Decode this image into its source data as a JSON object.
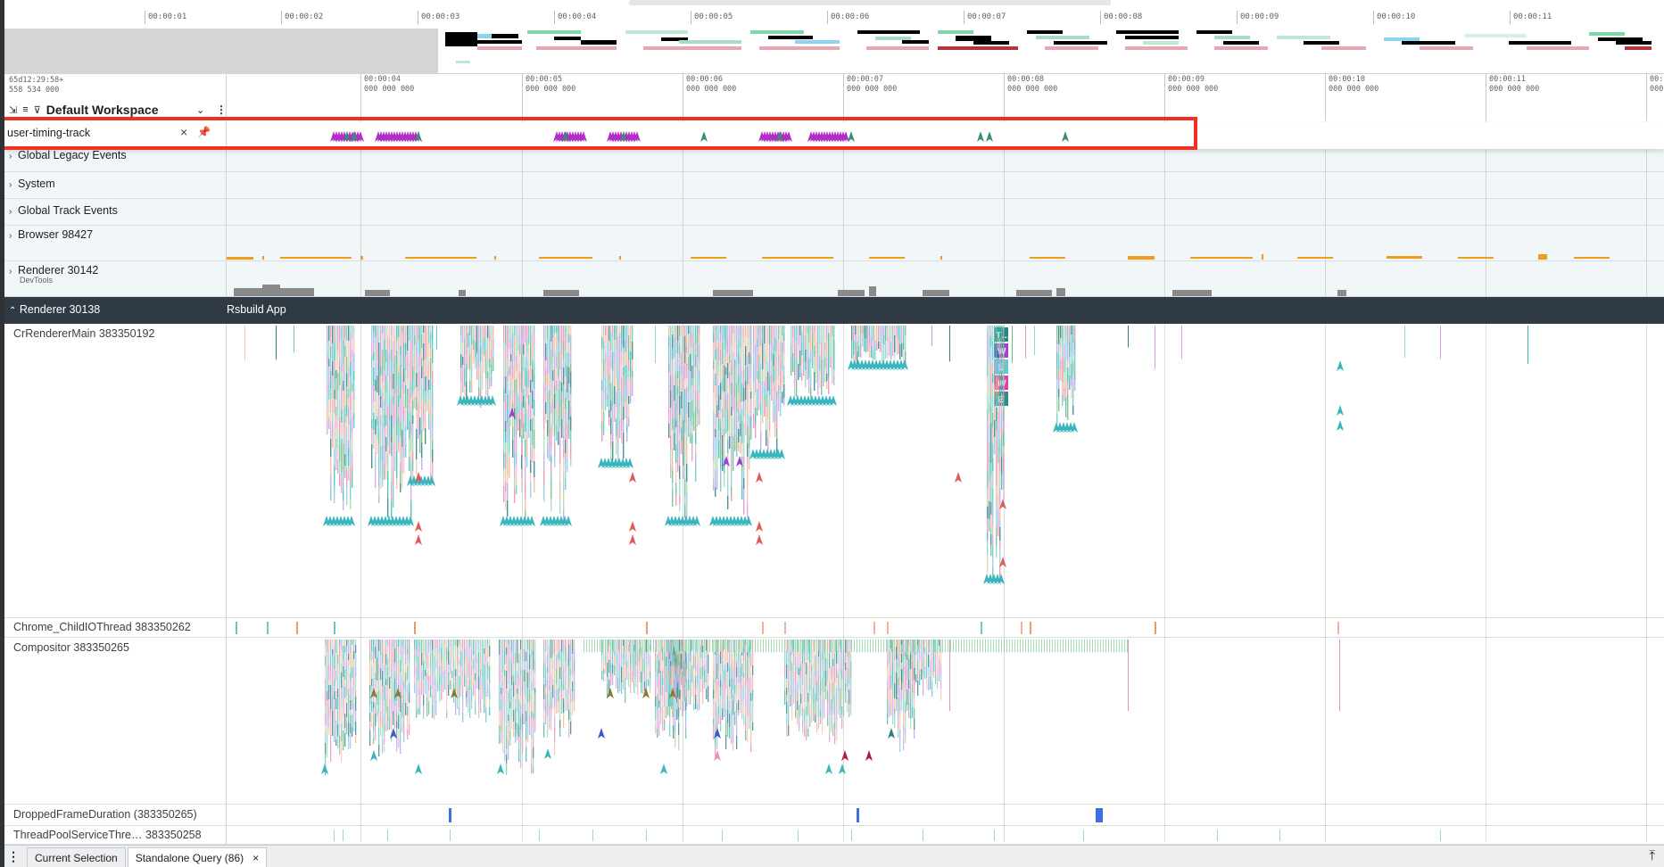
{
  "overview": {
    "ticks": [
      "00:00:01",
      "00:00:02",
      "00:00:03",
      "00:00:04",
      "00:00:05",
      "00:00:06",
      "00:00:07",
      "00:00:08",
      "00:00:09",
      "00:00:10",
      "00:00:11"
    ]
  },
  "timestamp": {
    "line1": "65d12:29:58+",
    "line2": "558 534 000"
  },
  "workspace": {
    "title": "Default Workspace"
  },
  "ruler": {
    "ticks": [
      {
        "t": "00:00:04",
        "sub": "000 000 000"
      },
      {
        "t": "00:00:05",
        "sub": "000 000 000"
      },
      {
        "t": "00:00:06",
        "sub": "000 000 000"
      },
      {
        "t": "00:00:07",
        "sub": "000 000 000"
      },
      {
        "t": "00:00:08",
        "sub": "000 000 000"
      },
      {
        "t": "00:00:09",
        "sub": "000 000 000"
      },
      {
        "t": "00:00:10",
        "sub": "000 000 000"
      },
      {
        "t": "00:00:11",
        "sub": "000 000 000"
      },
      {
        "t": "00:0",
        "sub": "000"
      }
    ]
  },
  "pinned_track": {
    "name": "user-timing-track",
    "close_icon": "×"
  },
  "tracks": {
    "global_legacy": "Global Legacy Events",
    "system": "System",
    "global_track": "Global Track Events",
    "browser": "Browser 98427",
    "renderer_devtools": "Renderer 30142",
    "renderer_devtools_sub": "DevTools",
    "renderer_main": "Renderer 30138",
    "renderer_main_app": "Rsbuild App",
    "cr_renderer_main": "CrRendererMain 383350192",
    "child_io": "Chrome_ChildIOThread 383350262",
    "compositor": "Compositor 383350265",
    "dropped_frame": "DroppedFrameDuration (383350265)",
    "thread_pool": "ThreadPoolServiceThre… 383350258"
  },
  "slice_labels": [
    "T…",
    "W",
    "L",
    "W",
    "E"
  ],
  "bottom_tabs": {
    "current_selection": "Current Selection",
    "standalone_query": "Standalone Query (86)",
    "close": "×"
  },
  "colors": {
    "highlight_border": "#f0311f",
    "header_dark": "#2f3a44",
    "track_blue": "#f1f6f9",
    "marker_magenta": "#b02fc4",
    "marker_teal": "#3e8a75"
  }
}
